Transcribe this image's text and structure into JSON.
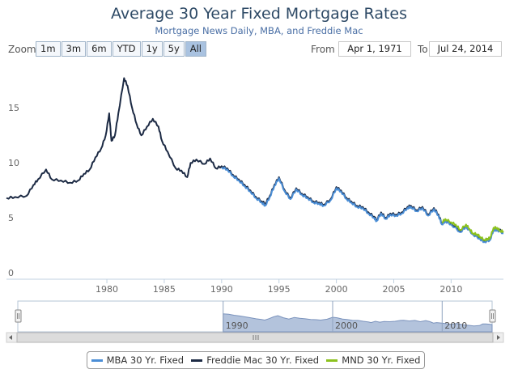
{
  "header": {
    "title": "Average 30 Year Fixed Mortgage Rates",
    "subtitle": "Mortgage News Daily, MBA, and Freddie Mac"
  },
  "toolbar": {
    "zoom_label": "Zoom",
    "zoom_buttons": [
      "1m",
      "3m",
      "6m",
      "YTD",
      "1y",
      "5y",
      "All"
    ],
    "active_zoom": "All",
    "from_label": "From",
    "from_value": "Apr 1, 1971",
    "to_label": "To",
    "to_value": "Jul 24, 2014"
  },
  "colors": {
    "mba": "#4b8ed6",
    "freddie": "#1c2a44",
    "mnd": "#8cc21e",
    "navigator_fill": "#b3c3dc",
    "navigator_line": "#7b93bd"
  },
  "legend": {
    "items": [
      "MBA 30 Yr. Fixed",
      "Freddie Mac 30 Yr. Fixed",
      "MND 30 Yr. Fixed"
    ]
  },
  "navigator": {
    "tick_labels": [
      "1990",
      "2000",
      "2010"
    ]
  },
  "chart_data": {
    "type": "line",
    "title": "Average 30 Year Fixed Mortgage Rates",
    "subtitle": "Mortgage News Daily, MBA, and Freddie Mac",
    "xlim": [
      1971.25,
      2014.56
    ],
    "ylim": [
      0,
      20
    ],
    "y_ticks": [
      0,
      5,
      10,
      15
    ],
    "x_ticks": [
      1980,
      1985,
      1990,
      1995,
      2000,
      2005,
      2010
    ],
    "series": [
      {
        "name": "Freddie Mac 30 Yr. Fixed",
        "x": [
          1971.25,
          1972,
          1973,
          1973.6,
          1974,
          1974.7,
          1975.2,
          1976,
          1976.8,
          1977.5,
          1978,
          1978.5,
          1979,
          1979.5,
          1979.9,
          1980.2,
          1980.4,
          1980.7,
          1981.0,
          1981.5,
          1981.8,
          1982.2,
          1982.6,
          1983.0,
          1983.5,
          1984.0,
          1984.5,
          1984.8,
          1985.3,
          1986.0,
          1986.5,
          1987.0,
          1987.3,
          1987.8,
          1988.5,
          1989.0,
          1989.5,
          1990.0,
          1990.5,
          1991.0,
          1991.5,
          1992.0,
          1992.5,
          1993.0,
          1993.5,
          1993.8,
          1994.2,
          1994.6,
          1995.0,
          1995.5,
          1996.0,
          1996.5,
          1997.0,
          1997.5,
          1998.0,
          1998.5,
          1998.9,
          1999.5,
          2000.0,
          2000.4,
          2000.9,
          2001.3,
          2001.8,
          2002.3,
          2002.8,
          2003.3,
          2003.5,
          2003.9,
          2004.3,
          2004.7,
          2005.2,
          2005.7,
          2006.2,
          2006.5,
          2007.0,
          2007.5,
          2008.0,
          2008.5,
          2008.9,
          2009.2,
          2009.5,
          2010.0,
          2010.8,
          2011.3,
          2011.9,
          2012.5,
          2012.9,
          2013.4,
          2013.7,
          2014.0,
          2014.56
        ],
        "values": [
          7.3,
          7.4,
          7.5,
          8.5,
          9.0,
          9.9,
          9.0,
          8.9,
          8.7,
          8.9,
          9.5,
          9.9,
          11.0,
          11.8,
          13.0,
          15.0,
          12.5,
          13.0,
          15.0,
          18.2,
          17.5,
          15.5,
          14.0,
          13.0,
          13.8,
          14.5,
          13.8,
          12.5,
          11.5,
          10.0,
          9.8,
          9.2,
          10.5,
          10.8,
          10.4,
          10.9,
          10.0,
          10.2,
          10.0,
          9.4,
          9.0,
          8.5,
          8.0,
          7.4,
          7.0,
          6.8,
          7.5,
          8.5,
          9.2,
          8.0,
          7.3,
          8.2,
          7.7,
          7.4,
          7.0,
          6.9,
          6.7,
          7.2,
          8.3,
          8.0,
          7.3,
          7.0,
          6.6,
          6.5,
          6.0,
          5.6,
          5.3,
          6.0,
          5.5,
          5.9,
          5.8,
          6.0,
          6.5,
          6.6,
          6.2,
          6.5,
          5.8,
          6.4,
          5.8,
          5.0,
          5.3,
          5.0,
          4.3,
          4.8,
          4.0,
          3.7,
          3.4,
          3.6,
          4.5,
          4.5,
          4.2
        ]
      },
      {
        "name": "MBA 30 Yr. Fixed",
        "x": [
          1990.0,
          1990.5,
          1991.0,
          1991.5,
          1992.0,
          1992.5,
          1993.0,
          1993.5,
          1993.8,
          1994.2,
          1994.6,
          1995.0,
          1995.5,
          1996.0,
          1996.5,
          1997.0,
          1997.5,
          1998.0,
          1998.5,
          1998.9,
          1999.5,
          2000.0,
          2000.4,
          2000.9,
          2001.3,
          2001.8,
          2002.3,
          2002.8,
          2003.3,
          2003.5,
          2003.9,
          2004.3,
          2004.7,
          2005.2,
          2005.7,
          2006.2,
          2006.5,
          2007.0,
          2007.5,
          2008.0,
          2008.5,
          2008.9,
          2009.2,
          2009.5,
          2010.0,
          2010.8,
          2011.3,
          2011.9,
          2012.5,
          2012.9,
          2013.4,
          2013.7,
          2014.0,
          2014.56
        ],
        "values": [
          10.1,
          9.9,
          9.3,
          8.9,
          8.4,
          7.9,
          7.3,
          6.9,
          6.6,
          7.4,
          8.4,
          9.1,
          7.9,
          7.2,
          8.1,
          7.6,
          7.3,
          6.9,
          6.8,
          6.6,
          7.1,
          8.2,
          7.9,
          7.2,
          6.9,
          6.5,
          6.4,
          5.9,
          5.5,
          5.2,
          5.9,
          5.4,
          5.8,
          5.7,
          5.9,
          6.4,
          6.5,
          6.1,
          6.4,
          5.7,
          6.3,
          5.7,
          4.9,
          5.2,
          4.9,
          4.2,
          4.7,
          4.0,
          3.6,
          3.3,
          3.5,
          4.4,
          4.4,
          4.1
        ]
      },
      {
        "name": "MND 30 Yr. Fixed",
        "x": [
          2009.2,
          2009.5,
          2010.0,
          2010.4,
          2010.8,
          2011.3,
          2011.6,
          2011.9,
          2012.3,
          2012.5,
          2012.9,
          2013.2,
          2013.4,
          2013.7,
          2014.0,
          2014.3,
          2014.56
        ],
        "values": [
          5.1,
          5.4,
          5.1,
          4.9,
          4.4,
          4.9,
          4.5,
          4.1,
          4.0,
          3.8,
          3.5,
          3.6,
          3.7,
          4.6,
          4.6,
          4.3,
          4.3
        ]
      }
    ],
    "legend_position": "bottom-center",
    "grid": false
  }
}
